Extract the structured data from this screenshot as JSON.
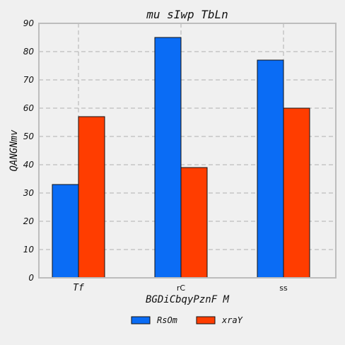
{
  "chart_data": {
    "type": "bar",
    "title": "mu sIwp TbLn",
    "xlabel": "BGDiCbqyPznF M",
    "ylabel": "QANGNmv",
    "categories": [
      "Tf",
      "rC",
      "ss"
    ],
    "ylim": [
      0,
      90
    ],
    "yticks": [
      "0",
      "10",
      "20",
      "30",
      "40",
      "50",
      "60",
      "70",
      "80",
      "90"
    ],
    "grid": true,
    "legend_position": "bottom-center",
    "series": [
      {
        "name": "RsOm",
        "values": [
          33,
          85,
          77
        ],
        "color": "#0a6cf5"
      },
      {
        "name": "xraY",
        "values": [
          57,
          39,
          60
        ],
        "color": "#ff3d00"
      }
    ]
  }
}
